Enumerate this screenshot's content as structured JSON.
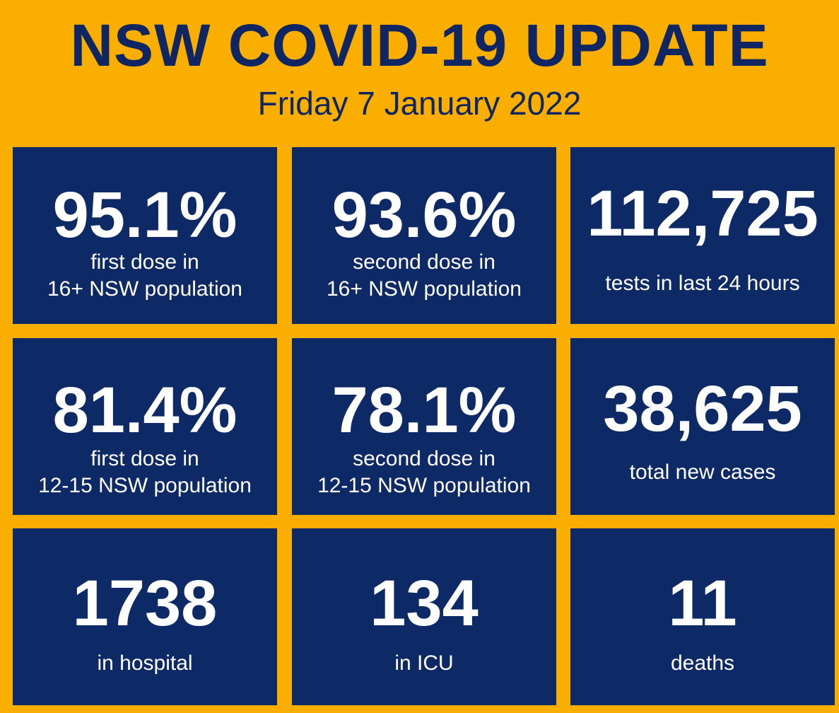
{
  "header": {
    "title": "NSW COVID-19 UPDATE",
    "date": "Friday 7 January 2022"
  },
  "colors": {
    "background": "#F9AE00",
    "tile": "#0E2A66",
    "title_text": "#0F2663",
    "tile_text": "#FFFFFF"
  },
  "stats": [
    {
      "value": "95.1%",
      "label_line1": "first dose in",
      "label_line2": "16+ NSW population"
    },
    {
      "value": "93.6%",
      "label_line1": "second dose in",
      "label_line2": "16+ NSW population"
    },
    {
      "value": "112,725",
      "label_line1": "tests in last 24 hours"
    },
    {
      "value": "81.4%",
      "label_line1": "first dose in",
      "label_line2": "12-15 NSW population"
    },
    {
      "value": "78.1%",
      "label_line1": "second dose in",
      "label_line2": "12-15 NSW population"
    },
    {
      "value": "38,625",
      "label_line1": "total new cases"
    },
    {
      "value": "1738",
      "label_line1": "in hospital"
    },
    {
      "value": "134",
      "label_line1": "in ICU"
    },
    {
      "value": "11",
      "label_line1": "deaths"
    }
  ]
}
